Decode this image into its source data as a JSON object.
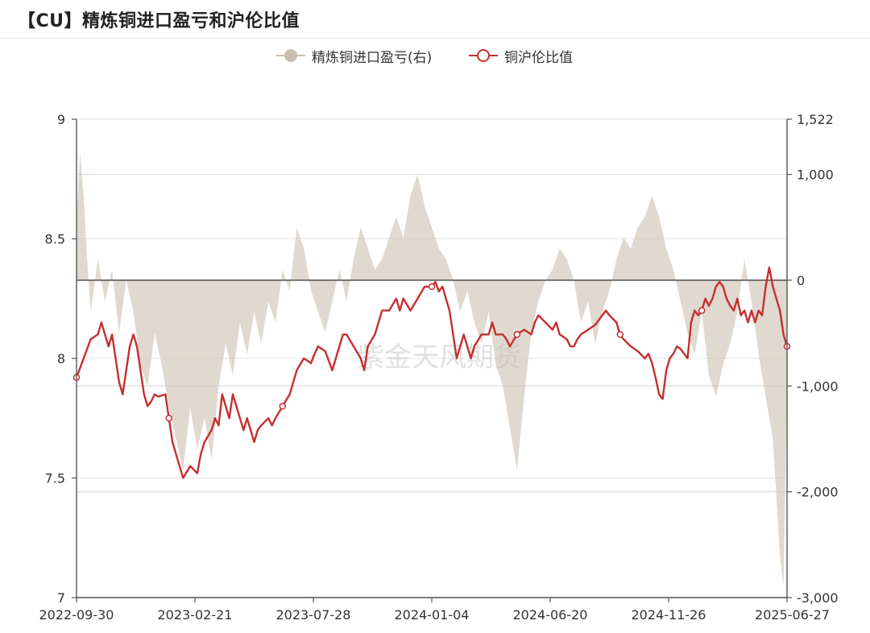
{
  "title": "【CU】精炼铜进口盈亏和沪伦比值",
  "watermark": "紫金天风期货",
  "chart_data": {
    "type": "line",
    "legend": [
      {
        "name": "精炼铜进口盈亏(右)",
        "style": "area",
        "color": "#c9bfb0"
      },
      {
        "name": "铜沪伦比值",
        "style": "line",
        "color": "#c62f2f"
      }
    ],
    "legend_position": "top-center",
    "grid": true,
    "x_ticks": [
      "2022-09-30",
      "2023-02-21",
      "2023-07-28",
      "2024-01-04",
      "2024-06-20",
      "2024-11-26",
      "2025-06-27"
    ],
    "y_left": {
      "min": 7,
      "max": 9,
      "ticks": [
        "7",
        "7.5",
        "8",
        "8.5",
        "9"
      ]
    },
    "y_right": {
      "min": -3000,
      "max": 1522,
      "ticks": [
        "-3,000",
        "-2,000",
        "-1,000",
        "0",
        "1,000",
        "1,522"
      ]
    },
    "series": [
      {
        "name": "铜沪伦比值",
        "axis": "left",
        "color": "#c62f2f",
        "points": [
          [
            0,
            7.92
          ],
          [
            0.01,
            8.0
          ],
          [
            0.02,
            8.08
          ],
          [
            0.03,
            8.1
          ],
          [
            0.035,
            8.15
          ],
          [
            0.045,
            8.05
          ],
          [
            0.05,
            8.1
          ],
          [
            0.06,
            7.9
          ],
          [
            0.065,
            7.85
          ],
          [
            0.07,
            7.95
          ],
          [
            0.075,
            8.05
          ],
          [
            0.08,
            8.1
          ],
          [
            0.085,
            8.05
          ],
          [
            0.09,
            7.95
          ],
          [
            0.095,
            7.85
          ],
          [
            0.1,
            7.8
          ],
          [
            0.105,
            7.82
          ],
          [
            0.11,
            7.85
          ],
          [
            0.115,
            7.84
          ],
          [
            0.125,
            7.85
          ],
          [
            0.13,
            7.75
          ],
          [
            0.135,
            7.65
          ],
          [
            0.14,
            7.6
          ],
          [
            0.145,
            7.55
          ],
          [
            0.15,
            7.5
          ],
          [
            0.16,
            7.55
          ],
          [
            0.17,
            7.52
          ],
          [
            0.175,
            7.6
          ],
          [
            0.18,
            7.65
          ],
          [
            0.19,
            7.7
          ],
          [
            0.195,
            7.75
          ],
          [
            0.2,
            7.72
          ],
          [
            0.205,
            7.85
          ],
          [
            0.21,
            7.8
          ],
          [
            0.215,
            7.75
          ],
          [
            0.22,
            7.85
          ],
          [
            0.23,
            7.75
          ],
          [
            0.235,
            7.7
          ],
          [
            0.24,
            7.75
          ],
          [
            0.25,
            7.65
          ],
          [
            0.255,
            7.7
          ],
          [
            0.26,
            7.72
          ],
          [
            0.27,
            7.75
          ],
          [
            0.275,
            7.72
          ],
          [
            0.28,
            7.75
          ],
          [
            0.29,
            7.8
          ],
          [
            0.3,
            7.85
          ],
          [
            0.31,
            7.95
          ],
          [
            0.32,
            8.0
          ],
          [
            0.33,
            7.98
          ],
          [
            0.335,
            8.02
          ],
          [
            0.34,
            8.05
          ],
          [
            0.35,
            8.03
          ],
          [
            0.36,
            7.95
          ],
          [
            0.37,
            8.05
          ],
          [
            0.375,
            8.1
          ],
          [
            0.38,
            8.1
          ],
          [
            0.39,
            8.05
          ],
          [
            0.4,
            8.0
          ],
          [
            0.405,
            7.95
          ],
          [
            0.41,
            8.05
          ],
          [
            0.42,
            8.1
          ],
          [
            0.43,
            8.2
          ],
          [
            0.44,
            8.2
          ],
          [
            0.45,
            8.25
          ],
          [
            0.455,
            8.2
          ],
          [
            0.46,
            8.25
          ],
          [
            0.47,
            8.2
          ],
          [
            0.48,
            8.25
          ],
          [
            0.49,
            8.3
          ],
          [
            0.5,
            8.3
          ],
          [
            0.505,
            8.32
          ],
          [
            0.51,
            8.28
          ],
          [
            0.515,
            8.3
          ],
          [
            0.52,
            8.25
          ],
          [
            0.525,
            8.2
          ],
          [
            0.53,
            8.1
          ],
          [
            0.535,
            8.0
          ],
          [
            0.54,
            8.05
          ],
          [
            0.545,
            8.1
          ],
          [
            0.55,
            8.05
          ],
          [
            0.555,
            8.0
          ],
          [
            0.56,
            8.05
          ],
          [
            0.57,
            8.1
          ],
          [
            0.58,
            8.1
          ],
          [
            0.585,
            8.15
          ],
          [
            0.59,
            8.1
          ],
          [
            0.6,
            8.1
          ],
          [
            0.605,
            8.08
          ],
          [
            0.61,
            8.05
          ],
          [
            0.62,
            8.1
          ],
          [
            0.63,
            8.12
          ],
          [
            0.64,
            8.1
          ],
          [
            0.645,
            8.15
          ],
          [
            0.65,
            8.18
          ],
          [
            0.66,
            8.15
          ],
          [
            0.67,
            8.12
          ],
          [
            0.675,
            8.15
          ],
          [
            0.68,
            8.1
          ],
          [
            0.69,
            8.08
          ],
          [
            0.695,
            8.05
          ],
          [
            0.7,
            8.05
          ],
          [
            0.705,
            8.08
          ],
          [
            0.71,
            8.1
          ],
          [
            0.72,
            8.12
          ],
          [
            0.73,
            8.14
          ],
          [
            0.74,
            8.18
          ],
          [
            0.745,
            8.2
          ],
          [
            0.75,
            8.18
          ],
          [
            0.76,
            8.15
          ],
          [
            0.765,
            8.1
          ],
          [
            0.77,
            8.08
          ],
          [
            0.78,
            8.05
          ],
          [
            0.79,
            8.03
          ],
          [
            0.8,
            8.0
          ],
          [
            0.805,
            8.02
          ],
          [
            0.81,
            7.98
          ],
          [
            0.815,
            7.92
          ],
          [
            0.82,
            7.85
          ],
          [
            0.825,
            7.83
          ],
          [
            0.83,
            7.95
          ],
          [
            0.835,
            8.0
          ],
          [
            0.84,
            8.02
          ],
          [
            0.845,
            8.05
          ],
          [
            0.85,
            8.04
          ],
          [
            0.855,
            8.02
          ],
          [
            0.86,
            8.0
          ],
          [
            0.865,
            8.15
          ],
          [
            0.87,
            8.2
          ],
          [
            0.875,
            8.18
          ],
          [
            0.88,
            8.2
          ],
          [
            0.885,
            8.25
          ],
          [
            0.89,
            8.22
          ],
          [
            0.895,
            8.25
          ],
          [
            0.9,
            8.3
          ],
          [
            0.905,
            8.32
          ],
          [
            0.91,
            8.3
          ],
          [
            0.915,
            8.25
          ],
          [
            0.92,
            8.22
          ],
          [
            0.925,
            8.2
          ],
          [
            0.93,
            8.25
          ],
          [
            0.935,
            8.18
          ],
          [
            0.94,
            8.2
          ],
          [
            0.945,
            8.15
          ],
          [
            0.95,
            8.2
          ],
          [
            0.955,
            8.15
          ],
          [
            0.96,
            8.2
          ],
          [
            0.965,
            8.18
          ],
          [
            0.97,
            8.3
          ],
          [
            0.975,
            8.38
          ],
          [
            0.98,
            8.3
          ],
          [
            0.985,
            8.25
          ],
          [
            0.99,
            8.2
          ],
          [
            0.995,
            8.1
          ],
          [
            1.0,
            8.05
          ]
        ]
      },
      {
        "name": "精炼铜进口盈亏(右)",
        "axis": "right",
        "color": "#c9bfb0",
        "points": [
          [
            0,
            600
          ],
          [
            0.005,
            1200
          ],
          [
            0.01,
            800
          ],
          [
            0.015,
            200
          ],
          [
            0.02,
            -300
          ],
          [
            0.03,
            200
          ],
          [
            0.04,
            -200
          ],
          [
            0.05,
            100
          ],
          [
            0.06,
            -500
          ],
          [
            0.07,
            0
          ],
          [
            0.08,
            -300
          ],
          [
            0.09,
            -800
          ],
          [
            0.1,
            -1000
          ],
          [
            0.11,
            -500
          ],
          [
            0.12,
            -800
          ],
          [
            0.13,
            -1200
          ],
          [
            0.14,
            -1500
          ],
          [
            0.15,
            -1800
          ],
          [
            0.16,
            -1200
          ],
          [
            0.17,
            -1600
          ],
          [
            0.18,
            -1300
          ],
          [
            0.19,
            -1700
          ],
          [
            0.2,
            -1000
          ],
          [
            0.21,
            -600
          ],
          [
            0.22,
            -900
          ],
          [
            0.23,
            -400
          ],
          [
            0.24,
            -700
          ],
          [
            0.25,
            -300
          ],
          [
            0.26,
            -600
          ],
          [
            0.27,
            -200
          ],
          [
            0.28,
            -400
          ],
          [
            0.29,
            100
          ],
          [
            0.3,
            -100
          ],
          [
            0.31,
            500
          ],
          [
            0.32,
            300
          ],
          [
            0.33,
            -100
          ],
          [
            0.34,
            -300
          ],
          [
            0.35,
            -500
          ],
          [
            0.36,
            -200
          ],
          [
            0.37,
            100
          ],
          [
            0.38,
            -200
          ],
          [
            0.39,
            200
          ],
          [
            0.4,
            500
          ],
          [
            0.41,
            300
          ],
          [
            0.42,
            100
          ],
          [
            0.43,
            200
          ],
          [
            0.44,
            400
          ],
          [
            0.45,
            600
          ],
          [
            0.46,
            400
          ],
          [
            0.47,
            800
          ],
          [
            0.48,
            1000
          ],
          [
            0.49,
            700
          ],
          [
            0.5,
            500
          ],
          [
            0.51,
            300
          ],
          [
            0.52,
            200
          ],
          [
            0.53,
            0
          ],
          [
            0.54,
            -300
          ],
          [
            0.55,
            -100
          ],
          [
            0.56,
            -400
          ],
          [
            0.57,
            -600
          ],
          [
            0.58,
            -300
          ],
          [
            0.59,
            -800
          ],
          [
            0.6,
            -1000
          ],
          [
            0.61,
            -1400
          ],
          [
            0.62,
            -1800
          ],
          [
            0.63,
            -1100
          ],
          [
            0.64,
            -500
          ],
          [
            0.65,
            -200
          ],
          [
            0.66,
            0
          ],
          [
            0.67,
            100
          ],
          [
            0.68,
            300
          ],
          [
            0.69,
            200
          ],
          [
            0.7,
            0
          ],
          [
            0.71,
            -400
          ],
          [
            0.72,
            -200
          ],
          [
            0.73,
            -600
          ],
          [
            0.74,
            -300
          ],
          [
            0.75,
            -100
          ],
          [
            0.76,
            200
          ],
          [
            0.77,
            400
          ],
          [
            0.78,
            300
          ],
          [
            0.79,
            500
          ],
          [
            0.8,
            600
          ],
          [
            0.81,
            800
          ],
          [
            0.82,
            600
          ],
          [
            0.83,
            300
          ],
          [
            0.84,
            100
          ],
          [
            0.85,
            -200
          ],
          [
            0.86,
            -500
          ],
          [
            0.87,
            -700
          ],
          [
            0.88,
            -300
          ],
          [
            0.89,
            -900
          ],
          [
            0.9,
            -1100
          ],
          [
            0.91,
            -800
          ],
          [
            0.92,
            -600
          ],
          [
            0.93,
            -300
          ],
          [
            0.94,
            200
          ],
          [
            0.95,
            -200
          ],
          [
            0.96,
            -700
          ],
          [
            0.97,
            -1100
          ],
          [
            0.98,
            -1500
          ],
          [
            0.99,
            -2600
          ],
          [
            0.995,
            -2900
          ],
          [
            1.0,
            -1000
          ]
        ]
      }
    ]
  }
}
